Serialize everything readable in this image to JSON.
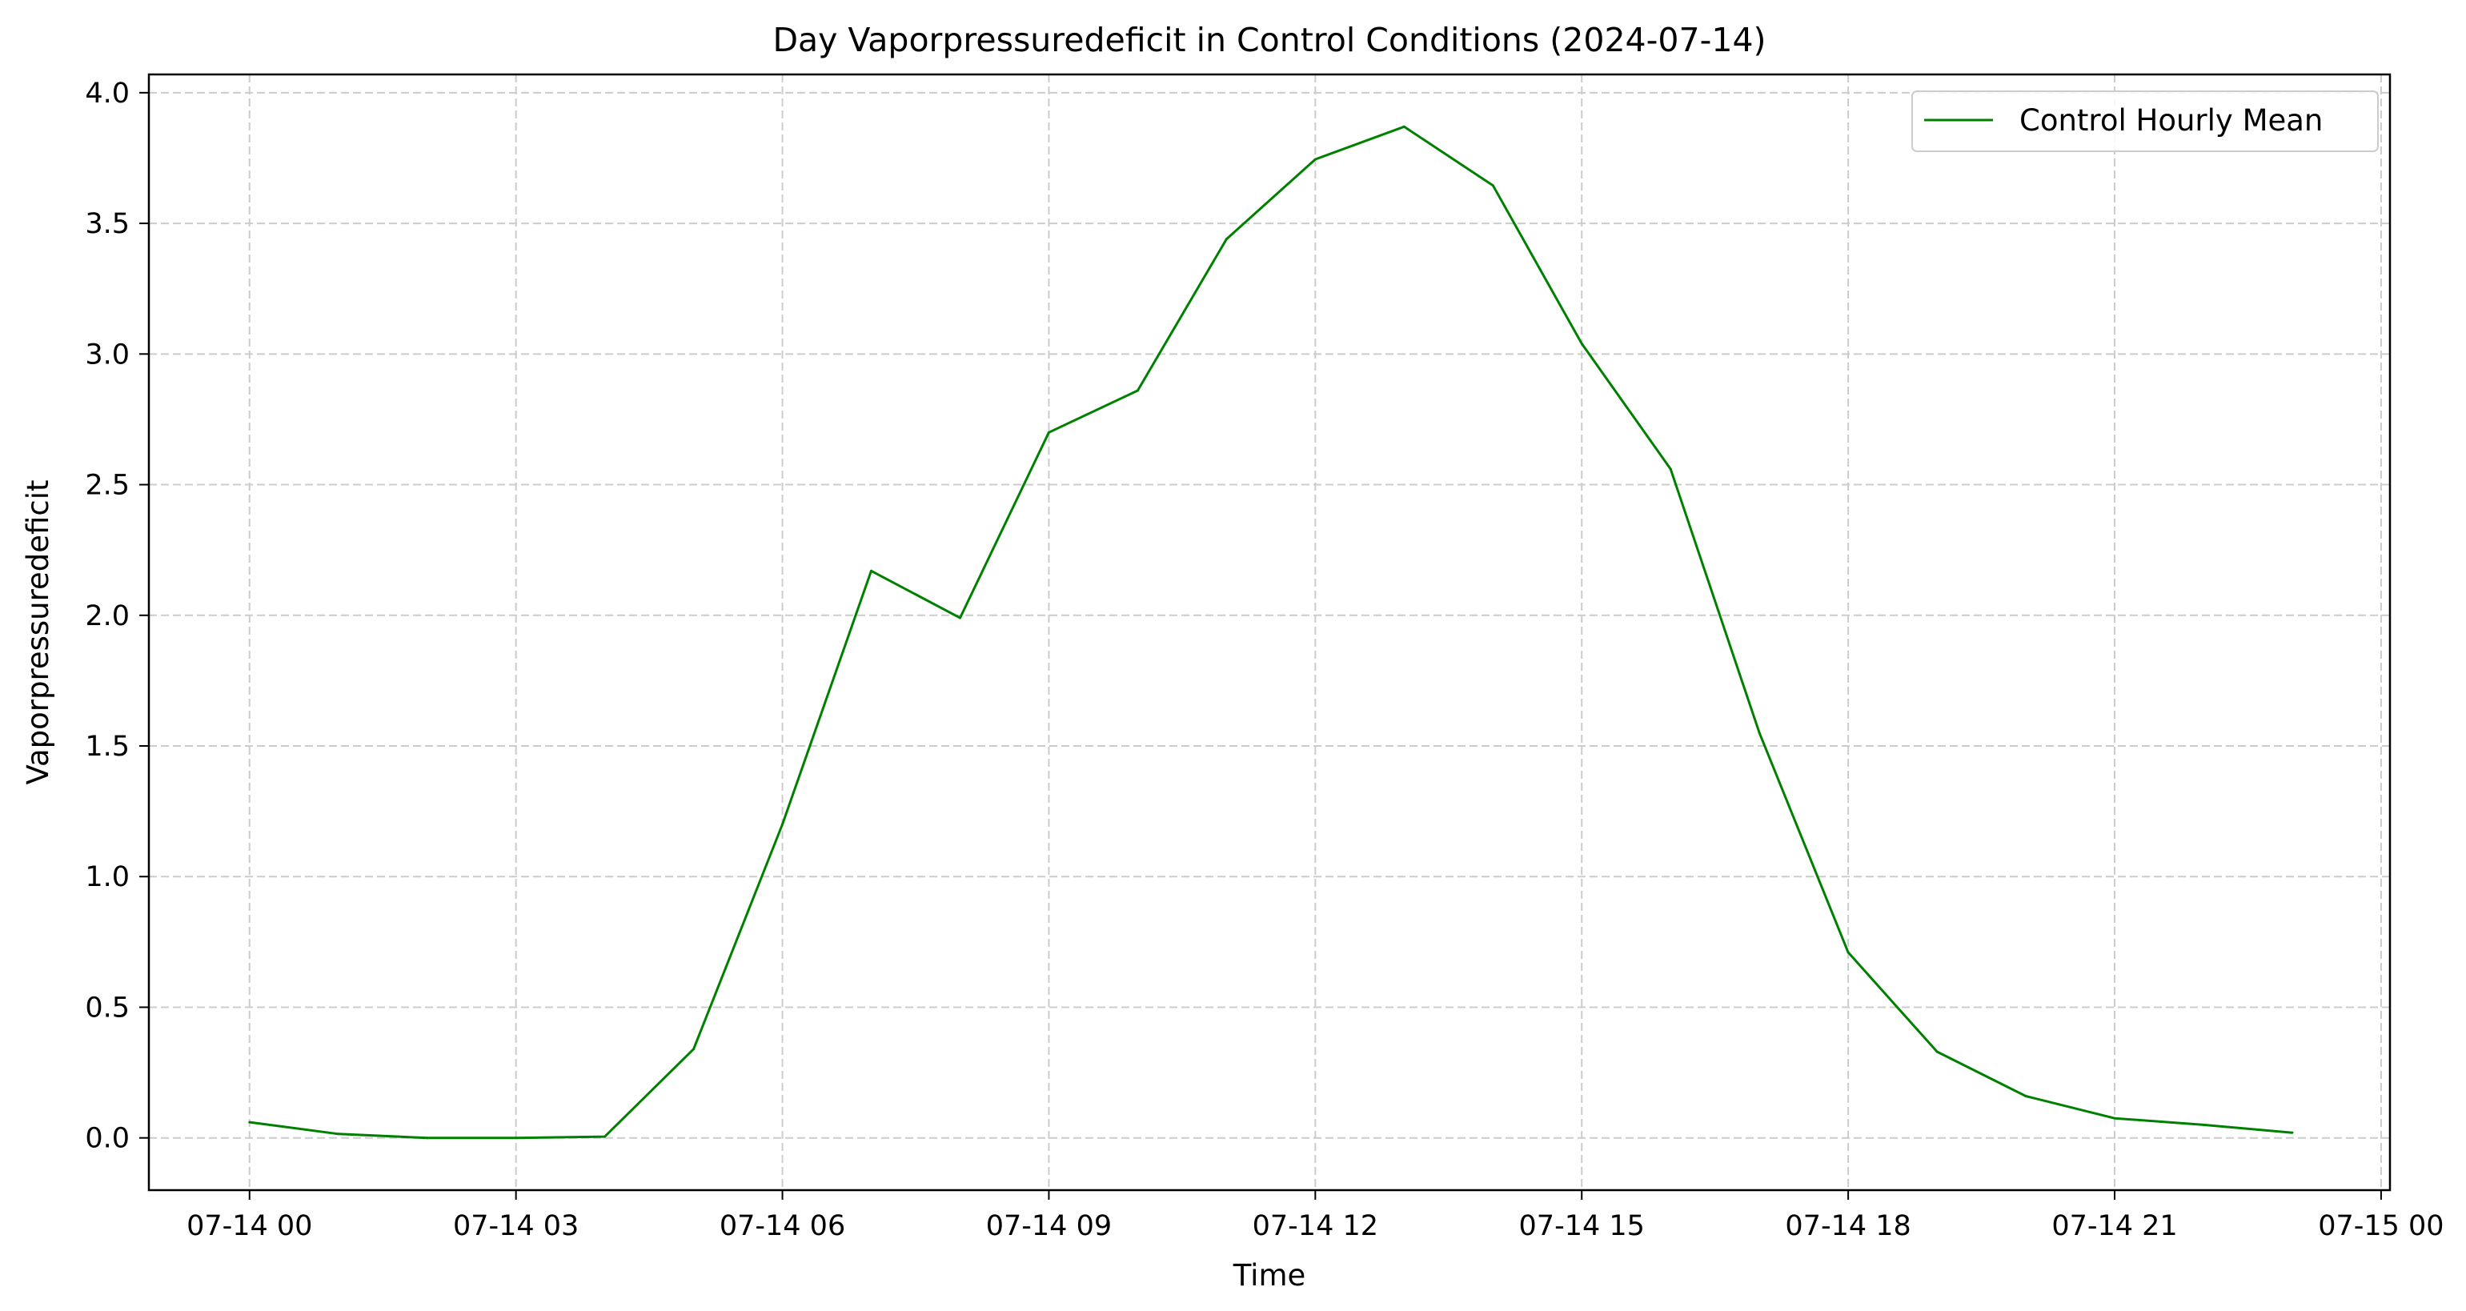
{
  "chart_data": {
    "type": "line",
    "title": "Day Vaporpressuredeficit in Control Conditions (2024-07-14)",
    "xlabel": "Time",
    "ylabel": "Vaporpressuredeficit",
    "xlim": [
      "2024-07-13 22:52",
      "2024-07-15 00:06"
    ],
    "ylim": [
      -0.2,
      4.07
    ],
    "x_ticks": [
      {
        "value": "2024-07-14 00:00",
        "label": "07-14 00"
      },
      {
        "value": "2024-07-14 03:00",
        "label": "07-14 03"
      },
      {
        "value": "2024-07-14 06:00",
        "label": "07-14 06"
      },
      {
        "value": "2024-07-14 09:00",
        "label": "07-14 09"
      },
      {
        "value": "2024-07-14 12:00",
        "label": "07-14 12"
      },
      {
        "value": "2024-07-14 15:00",
        "label": "07-14 15"
      },
      {
        "value": "2024-07-14 18:00",
        "label": "07-14 18"
      },
      {
        "value": "2024-07-14 21:00",
        "label": "07-14 21"
      },
      {
        "value": "2024-07-15 00:00",
        "label": "07-15 00"
      }
    ],
    "y_ticks": [
      {
        "value": 0.0,
        "label": "0.0"
      },
      {
        "value": 0.5,
        "label": "0.5"
      },
      {
        "value": 1.0,
        "label": "1.0"
      },
      {
        "value": 1.5,
        "label": "1.5"
      },
      {
        "value": 2.0,
        "label": "2.0"
      },
      {
        "value": 2.5,
        "label": "2.5"
      },
      {
        "value": 3.0,
        "label": "3.0"
      },
      {
        "value": 3.5,
        "label": "3.5"
      },
      {
        "value": 4.0,
        "label": "4.0"
      }
    ],
    "grid": true,
    "legend_position": "top-right",
    "series": [
      {
        "name": "Control Hourly Mean",
        "color": "#008000",
        "x": [
          "2024-07-14 00:00",
          "2024-07-14 01:00",
          "2024-07-14 02:00",
          "2024-07-14 03:00",
          "2024-07-14 04:00",
          "2024-07-14 05:00",
          "2024-07-14 06:00",
          "2024-07-14 07:00",
          "2024-07-14 08:00",
          "2024-07-14 09:00",
          "2024-07-14 10:00",
          "2024-07-14 11:00",
          "2024-07-14 12:00",
          "2024-07-14 13:00",
          "2024-07-14 14:00",
          "2024-07-14 15:00",
          "2024-07-14 16:00",
          "2024-07-14 17:00",
          "2024-07-14 18:00",
          "2024-07-14 19:00",
          "2024-07-14 20:00",
          "2024-07-14 21:00",
          "2024-07-14 22:00",
          "2024-07-14 23:00"
        ],
        "y": [
          0.06,
          0.015,
          0.0,
          0.0,
          0.005,
          0.34,
          1.2,
          2.17,
          1.99,
          2.7,
          2.86,
          3.44,
          3.745,
          3.87,
          3.645,
          3.04,
          2.56,
          1.55,
          0.71,
          0.33,
          0.16,
          0.075,
          0.05,
          0.02
        ]
      }
    ]
  }
}
